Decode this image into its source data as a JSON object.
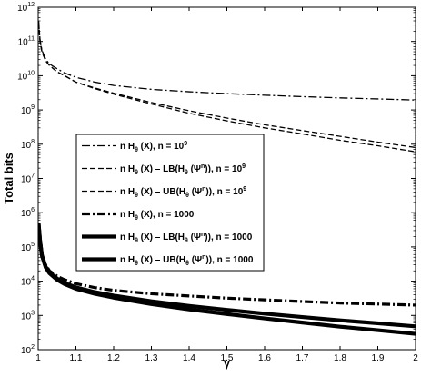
{
  "chart_data": {
    "type": "line",
    "title": "",
    "xlabel": "γ",
    "ylabel": "Total bits",
    "xlim": [
      1,
      2
    ],
    "ylim": [
      100,
      1000000000000
    ],
    "yscale": "log",
    "grid": false,
    "legend_position": "middle-left",
    "x_ticks": [
      1,
      1.1,
      1.2,
      1.3,
      1.4,
      1.5,
      1.6,
      1.7,
      1.8,
      1.9,
      2
    ],
    "x_tick_labels": [
      "1",
      "1.1",
      "1.2",
      "1.3",
      "1.4",
      "1.5",
      "1.6",
      "1.7",
      "1.8",
      "1.9",
      "2"
    ],
    "y_ticks": [
      100,
      1000,
      10000,
      100000,
      1000000,
      10000000,
      100000000,
      1000000000,
      10000000000,
      100000000000,
      1000000000000
    ],
    "y_tick_labels": [
      {
        "base": "10",
        "exp": "2"
      },
      {
        "base": "10",
        "exp": "3"
      },
      {
        "base": "10",
        "exp": "4"
      },
      {
        "base": "10",
        "exp": "5"
      },
      {
        "base": "10",
        "exp": "6"
      },
      {
        "base": "10",
        "exp": "7"
      },
      {
        "base": "10",
        "exp": "8"
      },
      {
        "base": "10",
        "exp": "9"
      },
      {
        "base": "10",
        "exp": "10"
      },
      {
        "base": "10",
        "exp": "11"
      },
      {
        "base": "10",
        "exp": "12"
      }
    ],
    "series": [
      {
        "name": "n H_θ (X), n = 10^9",
        "label_parts": [
          "n H",
          "θ",
          " (X), n = 10",
          "9"
        ],
        "style": "dashdot-thin",
        "x": [
          1.001,
          1.005,
          1.01,
          1.02,
          1.03,
          1.05,
          1.07,
          1.1,
          1.15,
          1.2,
          1.3,
          1.4,
          1.5,
          1.6,
          1.7,
          1.8,
          1.9,
          2.0
        ],
        "y": [
          400000000000,
          110000000000,
          55000000000,
          30000000000,
          22000000000,
          16000000000,
          12000000000,
          9000000000,
          6500000000,
          5200000000,
          4000000000,
          3400000000,
          3000000000,
          2700000000,
          2450000000,
          2250000000,
          2100000000,
          1950000000
        ]
      },
      {
        "name": "n H_θ (X) – LB(H_θ (Ψ^n)), n = 10^9",
        "label_parts": [
          "n H",
          "θ",
          " (X) – LB(H",
          "θ",
          " (Ψ",
          "n",
          ")), n = 10",
          "9"
        ],
        "style": "dashed-thin",
        "x": [
          1.001,
          1.005,
          1.01,
          1.02,
          1.03,
          1.05,
          1.07,
          1.1,
          1.15,
          1.2,
          1.3,
          1.4,
          1.5,
          1.6,
          1.7,
          1.8,
          1.9,
          2.0
        ],
        "y": [
          380000000000,
          100000000000,
          50000000000,
          27000000000,
          20000000000,
          13000000000,
          10000000000,
          6500000000,
          4200000000,
          2900000000,
          1500000000,
          800000000,
          480000000,
          300000000,
          200000000,
          130000000,
          90000000,
          60000000
        ]
      },
      {
        "name": "n H_θ (X) – UB(H_θ (Ψ^n)), n = 10^9",
        "label_parts": [
          "n H",
          "θ",
          " (X) – UB(H",
          "θ",
          " (Ψ",
          "n",
          ")), n = 10",
          "9"
        ],
        "style": "dashed-thin",
        "x": [
          1.001,
          1.005,
          1.01,
          1.02,
          1.03,
          1.05,
          1.07,
          1.1,
          1.15,
          1.2,
          1.3,
          1.4,
          1.5,
          1.6,
          1.7,
          1.8,
          1.9,
          2.0
        ],
        "y": [
          380000000000,
          100000000000,
          50000000000,
          27000000000,
          20000000000,
          13000000000,
          10000000000,
          6500000000,
          4400000000,
          3100000000,
          1650000000,
          950000000,
          580000000,
          370000000,
          250000000,
          170000000,
          115000000,
          80000000
        ]
      },
      {
        "name": "n H_θ (X), n = 1000",
        "label_parts": [
          "n H",
          "θ",
          " (X), n = 1000"
        ],
        "style": "dashdot-thick",
        "x": [
          1.001,
          1.005,
          1.01,
          1.02,
          1.03,
          1.05,
          1.07,
          1.1,
          1.15,
          1.2,
          1.3,
          1.4,
          1.5,
          1.6,
          1.7,
          1.8,
          1.9,
          2.0
        ],
        "y": [
          500000,
          150000,
          60000,
          30000,
          20000,
          14000,
          11000,
          8500,
          6500,
          5400,
          4300,
          3700,
          3200,
          2850,
          2550,
          2300,
          2150,
          2000
        ]
      },
      {
        "name": "n H_θ (X) – LB(H_θ (Ψ^n)), n = 1000",
        "label_parts": [
          "n H",
          "θ",
          " (X) – LB(H",
          "θ",
          " (Ψ",
          "n",
          ")), n = 1000"
        ],
        "style": "solid-thick",
        "x": [
          1.001,
          1.005,
          1.01,
          1.02,
          1.03,
          1.05,
          1.07,
          1.1,
          1.15,
          1.2,
          1.3,
          1.4,
          1.5,
          1.6,
          1.7,
          1.8,
          1.9,
          2.0
        ],
        "y": [
          500000,
          150000,
          55000,
          25000,
          17000,
          11000,
          8200,
          6000,
          4300,
          3300,
          2150,
          1500,
          1100,
          820,
          620,
          470,
          370,
          290
        ]
      },
      {
        "name": "n H_θ (X) – UB(H_θ (Ψ^n)), n = 1000",
        "label_parts": [
          "n H",
          "θ",
          " (X) – UB(H",
          "θ",
          " (Ψ",
          "n",
          ")), n = 1000"
        ],
        "style": "solid-thick",
        "x": [
          1.001,
          1.005,
          1.01,
          1.02,
          1.03,
          1.05,
          1.07,
          1.1,
          1.15,
          1.2,
          1.3,
          1.4,
          1.5,
          1.6,
          1.7,
          1.8,
          1.9,
          2.0
        ],
        "y": [
          500000,
          150000,
          56000,
          26000,
          18000,
          12000,
          8800,
          6600,
          4800,
          3800,
          2600,
          1900,
          1450,
          1130,
          900,
          720,
          590,
          480
        ]
      }
    ]
  }
}
